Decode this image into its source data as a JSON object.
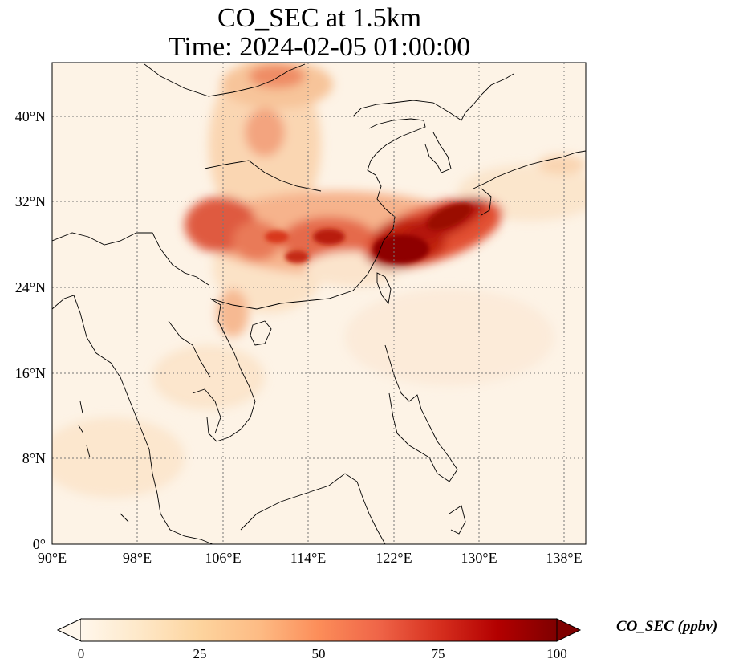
{
  "title": {
    "line1": "CO_SEC at 1.5km",
    "line2": "Time: 2024-02-05 01:00:00"
  },
  "map": {
    "lon_range": [
      90,
      140
    ],
    "lat_range": [
      0,
      45
    ],
    "lon_ticks": [
      "90°E",
      "98°E",
      "106°E",
      "114°E",
      "122°E",
      "130°E",
      "138°E"
    ],
    "lat_ticks": [
      "0°",
      "8°N",
      "16°N",
      "24°N",
      "32°N",
      "40°N"
    ],
    "gridlines": true,
    "colormap": "OrRd"
  },
  "colorbar": {
    "label": "CO_SEC (ppbv)",
    "ticks": [
      "0",
      "25",
      "50",
      "75",
      "100"
    ],
    "min": 0,
    "max": 100,
    "extend": "both",
    "colors": [
      "#fff7ec",
      "#fee8c8",
      "#fdd49e",
      "#fdbb84",
      "#fc8d59",
      "#ef6548",
      "#d7301f",
      "#b30000",
      "#7f0000"
    ]
  }
}
